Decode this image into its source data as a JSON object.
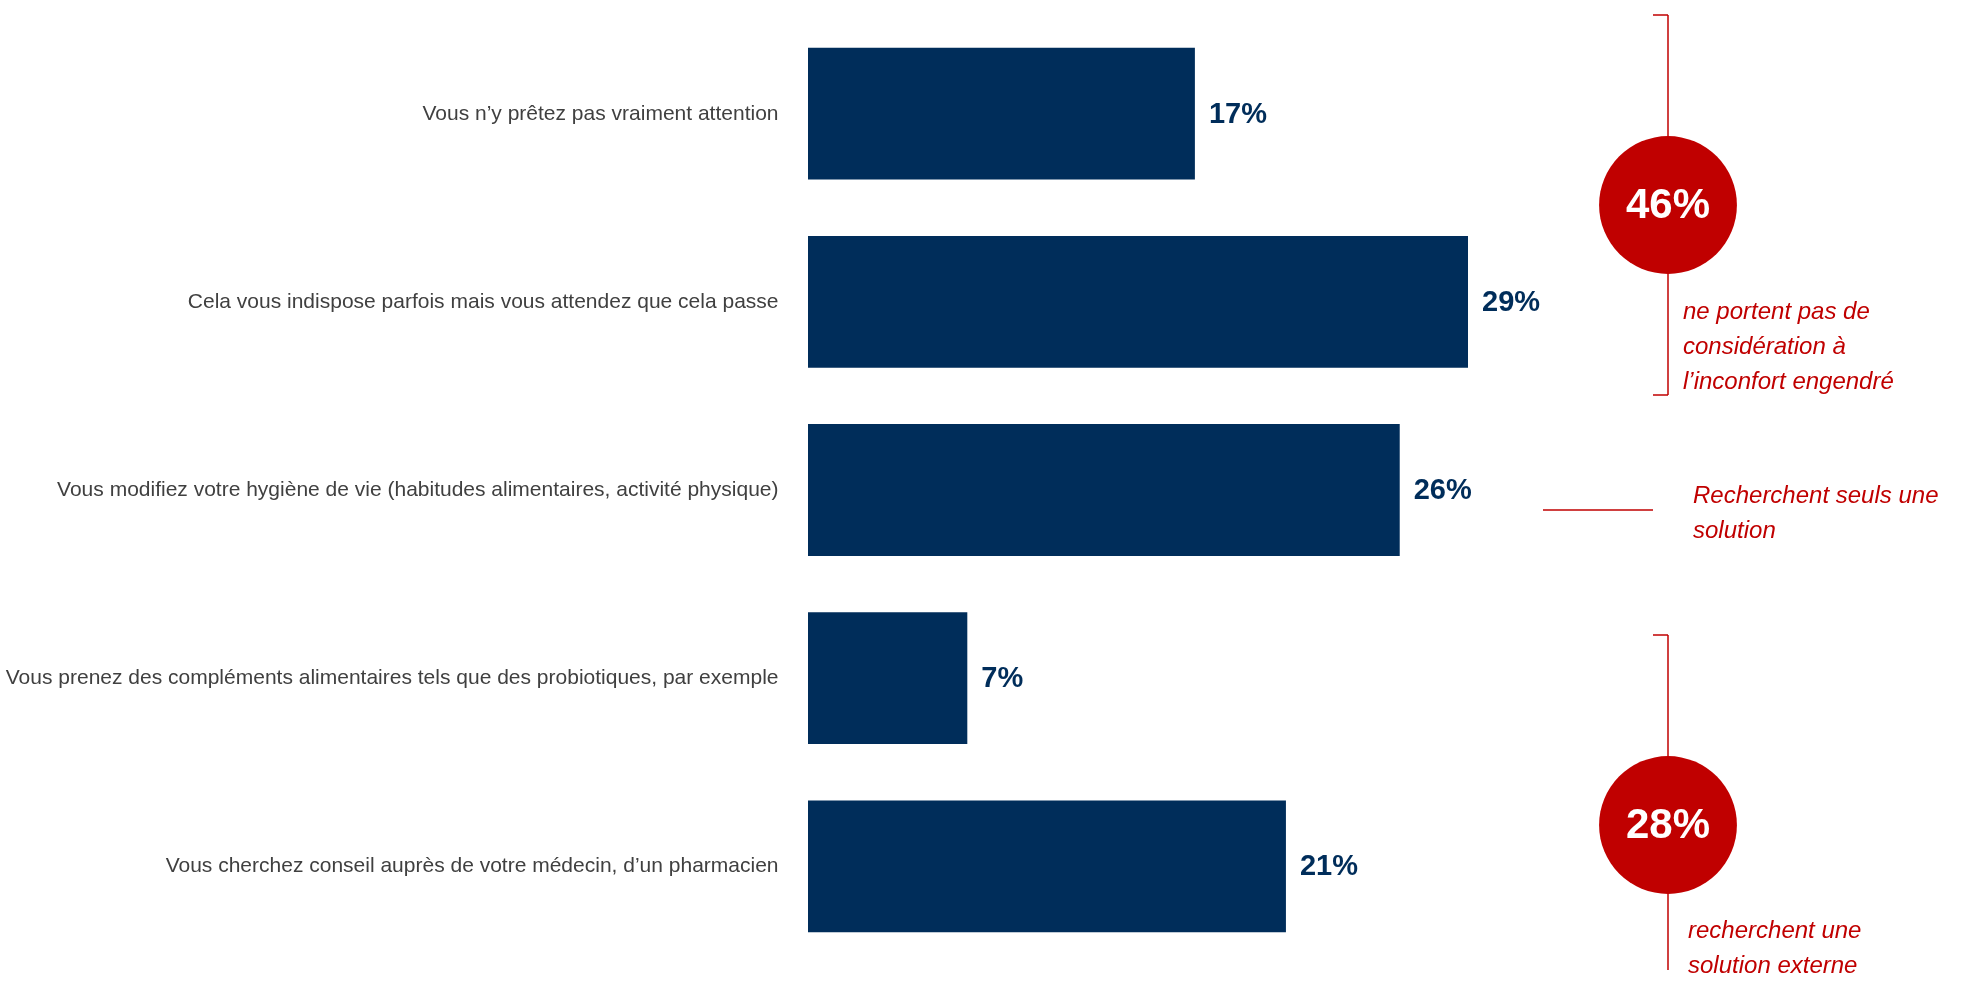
{
  "chart_data": {
    "type": "bar",
    "orientation": "horizontal",
    "categories": [
      "Vous n’y prêtez pas vraiment attention",
      "Cela vous indispose parfois mais vous attendez que cela passe",
      "Vous modifiez votre hygiène de vie (habitudes alimentaires, activité physique)",
      "Vous prenez des compléments alimentaires tels que des probiotiques, par exemple",
      "Vous cherchez conseil auprès de votre médecin, d’un pharmacien"
    ],
    "values": [
      17,
      29,
      26,
      7,
      21
    ],
    "value_labels": [
      "17%",
      "29%",
      "26%",
      "7%",
      "21%"
    ],
    "color": "#002d5a",
    "annotations": [
      "46%",
      "ne portent pas de considération à l’inconfort engendré",
      "Recherchent seuls une solution",
      "28%",
      "recherchent une solution externe"
    ],
    "tick_labels": "y"
  }
}
